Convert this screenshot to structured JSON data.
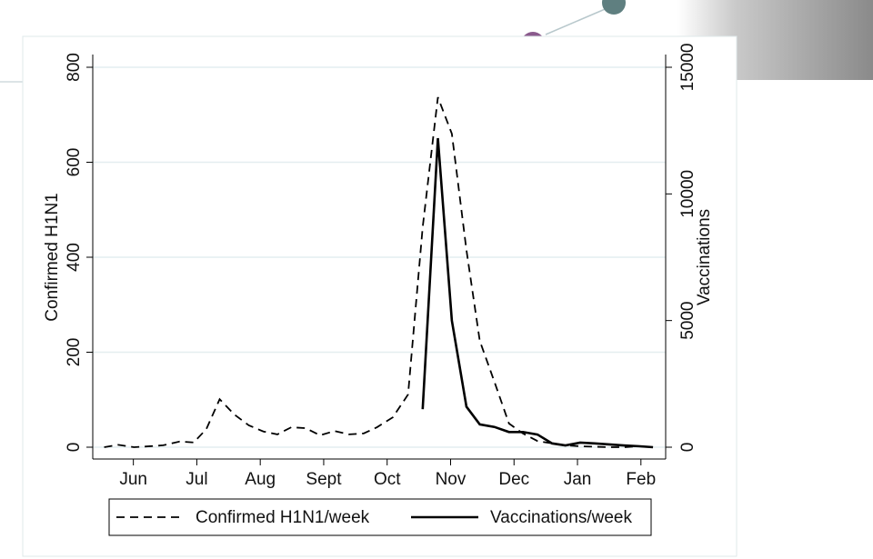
{
  "chart_data": {
    "type": "line",
    "y_label": "Confirmed H1N1",
    "y2_label": "Vaccinations",
    "x": [
      5.54,
      5.76,
      6.01,
      6.26,
      6.47,
      6.73,
      6.95,
      7.15,
      7.36,
      7.59,
      7.82,
      8.05,
      8.27,
      8.49,
      8.72,
      8.94,
      9.17,
      9.4,
      9.63,
      9.84,
      10.09,
      10.33,
      10.56,
      10.8,
      11.02,
      11.25,
      11.46,
      11.69,
      11.92,
      12.14,
      12.37,
      12.6,
      12.81,
      13.04,
      13.27,
      13.5,
      13.73,
      13.96,
      14.19
    ],
    "series": [
      {
        "name": "Confirmed H1N1/week",
        "color": "#000000",
        "style": "dashed",
        "values": [
          0,
          5,
          0,
          2,
          4,
          12,
          10,
          38,
          101,
          69,
          46,
          33,
          27,
          42,
          40,
          25,
          34,
          27,
          29,
          42,
          63,
          111,
          463,
          737,
          660,
          415,
          224,
          138,
          50,
          29,
          13,
          8,
          4,
          2,
          1,
          0,
          0,
          2,
          0
        ]
      },
      {
        "name": "Vaccinations/week",
        "color": "#000000",
        "style": "solid",
        "axis": "y2",
        "values": [
          null,
          null,
          null,
          null,
          null,
          null,
          null,
          null,
          null,
          null,
          null,
          null,
          null,
          null,
          null,
          null,
          null,
          null,
          null,
          null,
          null,
          null,
          1500,
          12200,
          5000,
          1600,
          900,
          800,
          600,
          600,
          500,
          150,
          70,
          180,
          150,
          110,
          70,
          40,
          0
        ]
      }
    ],
    "xlim": [
      5.36,
      14.39
    ],
    "xticks": [
      {
        "value": 6,
        "label": "Jun"
      },
      {
        "value": 7,
        "label": "Jul"
      },
      {
        "value": 8,
        "label": "Aug"
      },
      {
        "value": 9,
        "label": "Sept"
      },
      {
        "value": 10,
        "label": "Oct"
      },
      {
        "value": 11,
        "label": "Nov"
      },
      {
        "value": 12,
        "label": "Dec"
      },
      {
        "value": 13,
        "label": "Jan"
      },
      {
        "value": 14,
        "label": "Feb"
      }
    ],
    "ylim": [
      0,
      800
    ],
    "yticks": [
      0,
      200,
      400,
      600,
      800
    ],
    "y2lim": [
      0,
      15000
    ],
    "y2ticks": [
      0,
      5000,
      10000,
      15000
    ],
    "grid": true,
    "legend": "bottom"
  }
}
